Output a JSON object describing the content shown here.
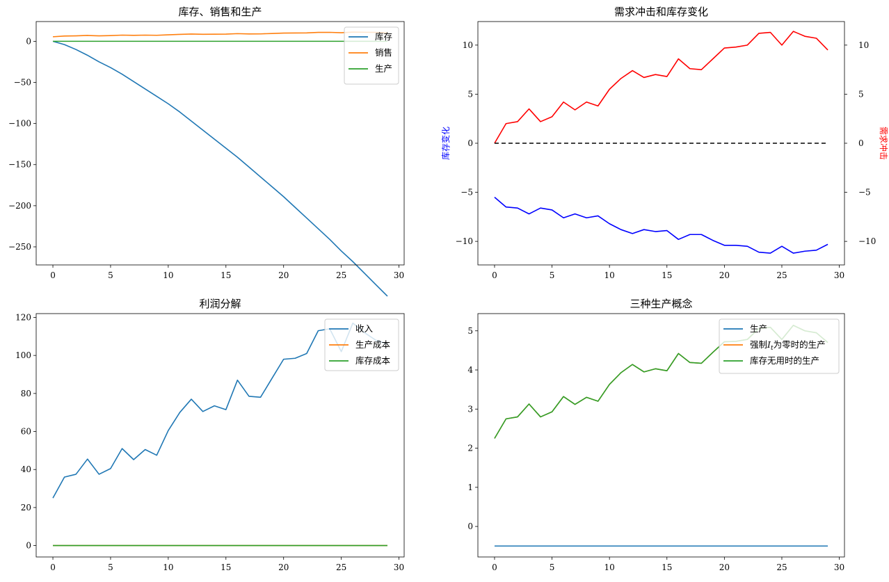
{
  "chart_data": [
    {
      "type": "line",
      "title": "库存、销售和生产",
      "xlabel": "",
      "ylabel": "",
      "xlim": [
        -1.45,
        30.45
      ],
      "ylim": [
        -272,
        24
      ],
      "xticks": [
        0,
        5,
        10,
        15,
        20,
        25,
        30
      ],
      "yticks": [
        0,
        -50,
        -100,
        -150,
        -200,
        -250
      ],
      "legend_position": "top-right",
      "x": [
        0,
        1,
        2,
        3,
        4,
        5,
        6,
        7,
        8,
        9,
        10,
        11,
        12,
        13,
        14,
        15,
        16,
        17,
        18,
        19,
        20,
        21,
        22,
        23,
        24,
        25,
        26,
        27,
        28,
        29
      ],
      "series": [
        {
          "name": "库存",
          "color": "#1f77b4",
          "values": [
            0,
            -4,
            -10,
            -17,
            -25,
            -32,
            -40,
            -49,
            -58,
            -67,
            -76,
            -86,
            -97,
            -108,
            -119,
            -130,
            -141,
            -153,
            -165,
            -177,
            -189,
            -202,
            -215,
            -228,
            -241,
            -255,
            -268,
            -282,
            -296,
            -310
          ]
        },
        {
          "name": "销售",
          "color": "#ff7f0e",
          "values": [
            5.5,
            6.4,
            6.6,
            7.1,
            6.6,
            6.9,
            7.5,
            7.2,
            7.5,
            7.3,
            7.9,
            8.4,
            8.8,
            8.5,
            8.6,
            8.7,
            9.3,
            8.9,
            9.0,
            9.5,
            10.0,
            10.1,
            10.2,
            10.8,
            10.9,
            10.4,
            11.2,
            11.0,
            10.8,
            10.5
          ]
        },
        {
          "name": "生产",
          "color": "#2ca02c",
          "values": [
            0,
            0,
            0,
            0,
            0,
            0,
            0,
            0,
            0,
            0,
            0,
            0,
            0,
            0,
            0,
            0,
            0,
            0,
            0,
            0,
            0,
            0,
            0,
            0,
            0,
            0,
            0,
            0,
            0,
            0
          ]
        }
      ]
    },
    {
      "type": "line",
      "title": "需求冲击和库存变化",
      "xlabel": "",
      "ylabel": "库存变化",
      "y2label": "需求冲击",
      "xlim": [
        -1.45,
        30.45
      ],
      "ylim": [
        -12.4,
        12.4
      ],
      "y2lim": [
        -12.4,
        12.4
      ],
      "xticks": [
        0,
        5,
        10,
        15,
        20,
        25,
        30
      ],
      "yticks": [
        10,
        5,
        0,
        -5,
        -10
      ],
      "y2ticks": [
        10,
        5,
        0,
        -5,
        -10
      ],
      "x": [
        0,
        1,
        2,
        3,
        4,
        5,
        6,
        7,
        8,
        9,
        10,
        11,
        12,
        13,
        14,
        15,
        16,
        17,
        18,
        19,
        20,
        21,
        22,
        23,
        24,
        25,
        26,
        27,
        28,
        29
      ],
      "series": [
        {
          "name": "",
          "axis": "right",
          "color": "#ff0000",
          "values": [
            0,
            2.0,
            2.2,
            3.5,
            2.2,
            2.7,
            4.2,
            3.4,
            4.2,
            3.8,
            5.5,
            6.6,
            7.4,
            6.7,
            7.0,
            6.8,
            8.6,
            7.6,
            7.5,
            8.6,
            9.7,
            9.8,
            10.0,
            11.2,
            11.3,
            10.0,
            11.4,
            10.9,
            10.7,
            9.5
          ]
        },
        {
          "name": "",
          "axis": "left",
          "color": "#0000ff",
          "values": [
            -5.5,
            -6.5,
            -6.6,
            -7.2,
            -6.6,
            -6.8,
            -7.6,
            -7.2,
            -7.6,
            -7.4,
            -8.2,
            -8.8,
            -9.2,
            -8.8,
            -9.0,
            -8.9,
            -9.8,
            -9.3,
            -9.3,
            -9.9,
            -10.4,
            -10.4,
            -10.5,
            -11.1,
            -11.2,
            -10.5,
            -11.2,
            -11.0,
            -10.9,
            -10.3
          ]
        },
        {
          "name": "",
          "axis": "left",
          "color": "#000000",
          "dash": true,
          "values": [
            0,
            0,
            0,
            0,
            0,
            0,
            0,
            0,
            0,
            0,
            0,
            0,
            0,
            0,
            0,
            0,
            0,
            0,
            0,
            0,
            0,
            0,
            0,
            0,
            0,
            0,
            0,
            0,
            0,
            0
          ]
        }
      ]
    },
    {
      "type": "line",
      "title": "利润分解",
      "xlabel": "",
      "ylabel": "",
      "xlim": [
        -1.45,
        30.45
      ],
      "ylim": [
        -6,
        122
      ],
      "xticks": [
        0,
        5,
        10,
        15,
        20,
        25,
        30
      ],
      "yticks": [
        120,
        100,
        80,
        60,
        40,
        20,
        0
      ],
      "legend_position": "top-right",
      "x": [
        0,
        1,
        2,
        3,
        4,
        5,
        6,
        7,
        8,
        9,
        10,
        11,
        12,
        13,
        14,
        15,
        16,
        17,
        18,
        19,
        20,
        21,
        22,
        23,
        24,
        25,
        26,
        27,
        28,
        29
      ],
      "series": [
        {
          "name": "收入",
          "color": "#1f77b4",
          "values": [
            25,
            36,
            37.5,
            45.5,
            37.5,
            40.5,
            51,
            45.2,
            50.5,
            47.5,
            60.5,
            70,
            77,
            70.5,
            73.5,
            71.5,
            87,
            78.5,
            78,
            88,
            98,
            98.5,
            101,
            113,
            114,
            102,
            117,
            112,
            108,
            106
          ]
        },
        {
          "name": "生产成本",
          "color": "#ff7f0e",
          "values": [
            0,
            0,
            0,
            0,
            0,
            0,
            0,
            0,
            0,
            0,
            0,
            0,
            0,
            0,
            0,
            0,
            0,
            0,
            0,
            0,
            0,
            0,
            0,
            0,
            0,
            0,
            0,
            0,
            0,
            0
          ]
        },
        {
          "name": "库存成本",
          "color": "#2ca02c",
          "values": [
            0,
            0,
            0,
            0,
            0,
            0,
            0,
            0,
            0,
            0,
            0,
            0,
            0,
            0,
            0,
            0,
            0,
            0,
            0,
            0,
            0,
            0,
            0,
            0,
            0,
            0,
            0,
            0,
            0,
            0
          ]
        }
      ]
    },
    {
      "type": "line",
      "title": "三种生产概念",
      "xlabel": "",
      "ylabel": "",
      "xlim": [
        -1.45,
        30.45
      ],
      "ylim": [
        -0.78,
        5.44
      ],
      "xticks": [
        0,
        5,
        10,
        15,
        20,
        25,
        30
      ],
      "yticks": [
        5,
        4,
        3,
        2,
        1,
        0
      ],
      "legend_position": "top-right",
      "x": [
        0,
        1,
        2,
        3,
        4,
        5,
        6,
        7,
        8,
        9,
        10,
        11,
        12,
        13,
        14,
        15,
        16,
        17,
        18,
        19,
        20,
        21,
        22,
        23,
        24,
        25,
        26,
        27,
        28,
        29
      ],
      "series": [
        {
          "name": "生产",
          "color": "#1f77b4",
          "values": [
            -0.5,
            -0.5,
            -0.5,
            -0.5,
            -0.5,
            -0.5,
            -0.5,
            -0.5,
            -0.5,
            -0.5,
            -0.5,
            -0.5,
            -0.5,
            -0.5,
            -0.5,
            -0.5,
            -0.5,
            -0.5,
            -0.5,
            -0.5,
            -0.5,
            -0.5,
            -0.5,
            -0.5,
            -0.5,
            -0.5,
            -0.5,
            -0.5,
            -0.5,
            -0.5
          ]
        },
        {
          "name_prefix": "强制",
          "name_var": "I",
          "name_sub": "t",
          "name_suffix": "为零时的生产",
          "color": "#ff7f0e",
          "values": [
            2.25,
            2.75,
            2.8,
            3.13,
            2.8,
            2.93,
            3.32,
            3.12,
            3.3,
            3.2,
            3.63,
            3.93,
            4.14,
            3.95,
            4.03,
            3.98,
            4.42,
            4.19,
            4.17,
            4.45,
            4.72,
            4.73,
            4.78,
            5.06,
            5.09,
            4.78,
            5.14,
            5.0,
            4.95,
            4.7
          ]
        },
        {
          "name": "库存无用时的生产",
          "color": "#2ca02c",
          "values": [
            2.25,
            2.75,
            2.8,
            3.13,
            2.8,
            2.93,
            3.32,
            3.12,
            3.3,
            3.2,
            3.63,
            3.93,
            4.14,
            3.95,
            4.03,
            3.98,
            4.42,
            4.19,
            4.17,
            4.45,
            4.72,
            4.73,
            4.78,
            5.06,
            5.09,
            4.78,
            5.14,
            5.0,
            4.95,
            4.7
          ]
        }
      ]
    }
  ]
}
